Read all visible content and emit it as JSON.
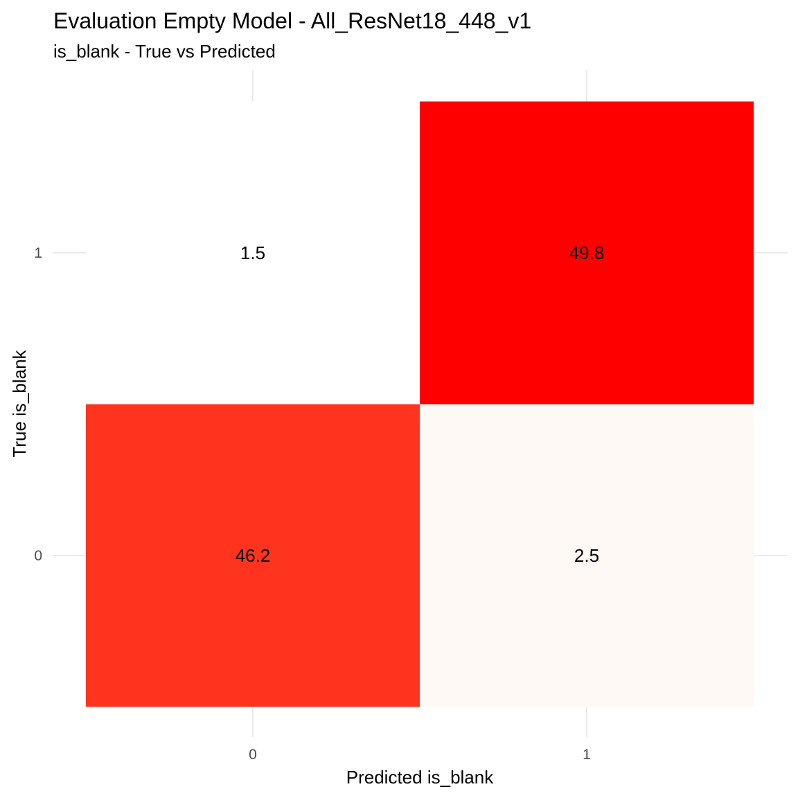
{
  "chart_data": {
    "type": "heatmap",
    "title": "Evaluation Empty Model - All_ResNet18_448_v1",
    "subtitle": "is_blank - True vs Predicted",
    "xlabel": "Predicted is_blank",
    "ylabel": "True is_blank",
    "x_categories": [
      "0",
      "1"
    ],
    "y_categories": [
      "0",
      "1"
    ],
    "cells": [
      {
        "x": "0",
        "y": "1",
        "value": 1.5,
        "label": "1.5"
      },
      {
        "x": "1",
        "y": "1",
        "value": 49.8,
        "label": "49.8"
      },
      {
        "x": "0",
        "y": "0",
        "value": 46.2,
        "label": "46.2"
      },
      {
        "x": "1",
        "y": "0",
        "value": 2.5,
        "label": "2.5"
      }
    ],
    "color_scale": {
      "low": "#ffffff",
      "high": "#ff0000"
    },
    "grid": true,
    "legend": "none"
  }
}
